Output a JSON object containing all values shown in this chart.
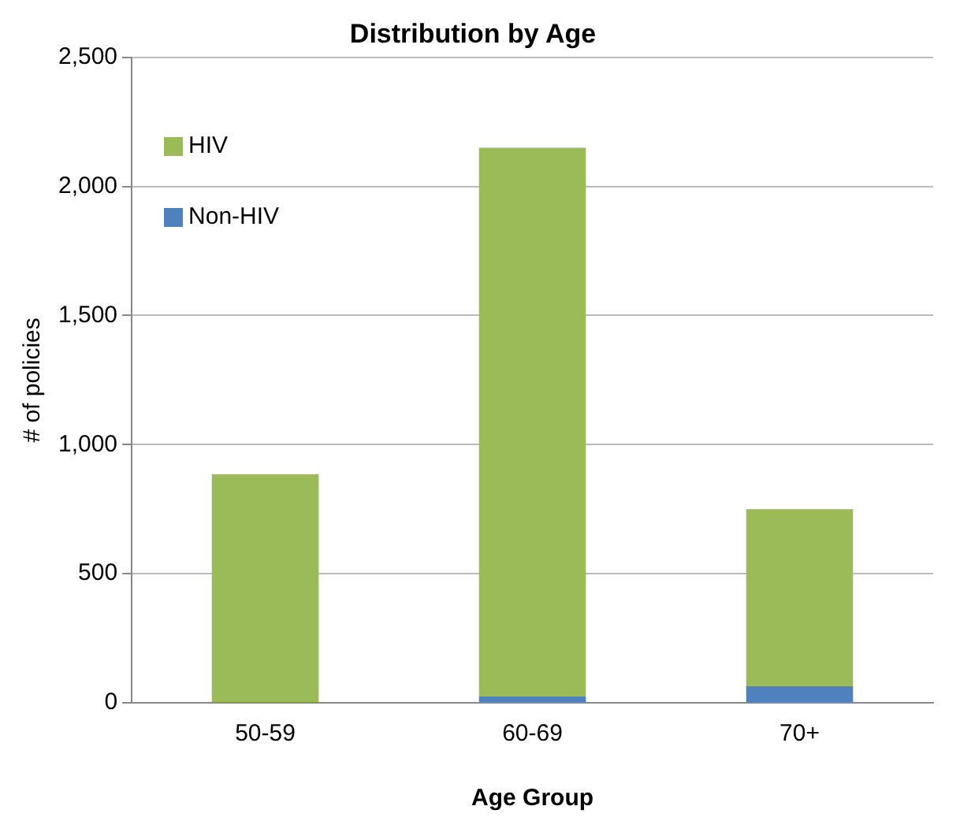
{
  "chart_data": {
    "type": "bar",
    "title": "Distribution by Age",
    "xlabel": "Age Group",
    "ylabel": "# of policies",
    "categories": [
      "50-59",
      "60-69",
      "70+"
    ],
    "stacked": true,
    "series": [
      {
        "name": "Non-HIV",
        "color": "#4f81bd",
        "values": [
          0,
          25,
          65
        ]
      },
      {
        "name": "HIV",
        "color": "#9bbb59",
        "values": [
          885,
          2125,
          685
        ]
      }
    ],
    "ylim": [
      0,
      2500
    ],
    "yticks": [
      {
        "value": 0,
        "label": "0"
      },
      {
        "value": 500,
        "label": "500"
      },
      {
        "value": 1000,
        "label": "1,000"
      },
      {
        "value": 1500,
        "label": "1,500"
      },
      {
        "value": 2000,
        "label": "2,000"
      },
      {
        "value": 2500,
        "label": "2,500"
      }
    ],
    "grid": "y",
    "legend": "top left"
  }
}
